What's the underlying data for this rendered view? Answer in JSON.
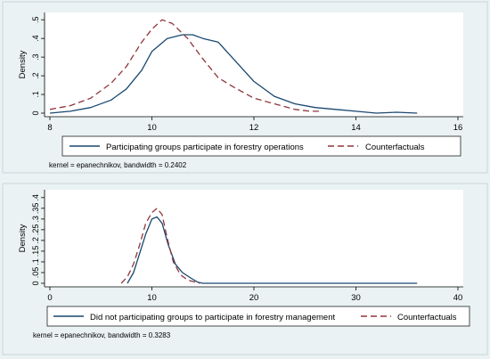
{
  "chart_data": [
    {
      "type": "line",
      "title": "",
      "xlabel": "",
      "ylabel": "Density",
      "xlim": [
        8,
        16
      ],
      "ylim": [
        0,
        0.52
      ],
      "x_ticks": [
        8,
        10,
        12,
        14,
        16
      ],
      "y_ticks": [
        0,
        0.1,
        0.2,
        0.3,
        0.4,
        0.5
      ],
      "y_tick_labels": [
        "0",
        ".1",
        ".2",
        ".3",
        ".4",
        ".5"
      ],
      "grid": false,
      "legend_position": "bottom",
      "note": "kernel = epanechnikov, bandwidth = 0.2402",
      "series": [
        {
          "name": "Participating groups participate in forestry operations",
          "color": "#1a476f",
          "dash": "solid",
          "x": [
            8.0,
            8.4,
            8.8,
            9.2,
            9.5,
            9.8,
            10.0,
            10.3,
            10.6,
            10.8,
            11.0,
            11.3,
            11.6,
            12.0,
            12.4,
            12.8,
            13.2,
            13.6,
            14.0,
            14.4,
            14.8,
            15.2
          ],
          "values": [
            0.0,
            0.01,
            0.03,
            0.07,
            0.13,
            0.23,
            0.33,
            0.4,
            0.42,
            0.42,
            0.4,
            0.38,
            0.29,
            0.17,
            0.09,
            0.05,
            0.03,
            0.02,
            0.01,
            0.0,
            0.005,
            0.0
          ]
        },
        {
          "name": "Counterfactuals",
          "color": "#90353b",
          "dash": "dashed",
          "x": [
            8.0,
            8.4,
            8.8,
            9.2,
            9.5,
            9.8,
            10.0,
            10.2,
            10.4,
            10.7,
            11.0,
            11.3,
            11.6,
            12.0,
            12.4,
            12.8,
            13.1,
            13.3
          ],
          "values": [
            0.02,
            0.04,
            0.08,
            0.16,
            0.25,
            0.38,
            0.45,
            0.5,
            0.48,
            0.4,
            0.29,
            0.19,
            0.14,
            0.08,
            0.05,
            0.02,
            0.01,
            0.01
          ]
        }
      ]
    },
    {
      "type": "line",
      "title": "",
      "xlabel": "",
      "ylabel": "Density",
      "xlim": [
        0,
        40
      ],
      "ylim": [
        0,
        0.42
      ],
      "x_ticks": [
        0,
        10,
        20,
        30,
        40
      ],
      "y_ticks": [
        0,
        0.05,
        0.1,
        0.15,
        0.2,
        0.25,
        0.3,
        0.35,
        0.4
      ],
      "y_tick_labels": [
        "0",
        ".05",
        ".1",
        ".15",
        ".2",
        ".25",
        ".3",
        ".35",
        ".4"
      ],
      "grid": false,
      "legend_position": "bottom",
      "note": "kernel = epanechnikov, bandwidth = 0.3283",
      "series": [
        {
          "name": "Did not participating groups to participate in forestry management",
          "color": "#1a476f",
          "dash": "solid",
          "x": [
            7.6,
            8.2,
            8.8,
            9.4,
            10.0,
            10.5,
            11.0,
            11.6,
            12.3,
            13.0,
            13.8,
            14.5,
            15.0,
            20.0,
            25.0,
            30.0,
            36.0
          ],
          "values": [
            0.0,
            0.05,
            0.14,
            0.23,
            0.3,
            0.31,
            0.28,
            0.18,
            0.09,
            0.05,
            0.025,
            0.005,
            0.0,
            0.0,
            0.0,
            0.0,
            0.0
          ]
        },
        {
          "name": "Counterfactuals",
          "color": "#90353b",
          "dash": "dashed",
          "x": [
            7.0,
            7.6,
            8.2,
            8.8,
            9.4,
            10.0,
            10.5,
            11.0,
            11.5,
            12.1,
            12.8,
            13.5,
            14.3,
            14.7
          ],
          "values": [
            0.0,
            0.03,
            0.09,
            0.18,
            0.28,
            0.33,
            0.35,
            0.32,
            0.21,
            0.1,
            0.04,
            0.015,
            0.005,
            0.0
          ]
        }
      ]
    }
  ]
}
